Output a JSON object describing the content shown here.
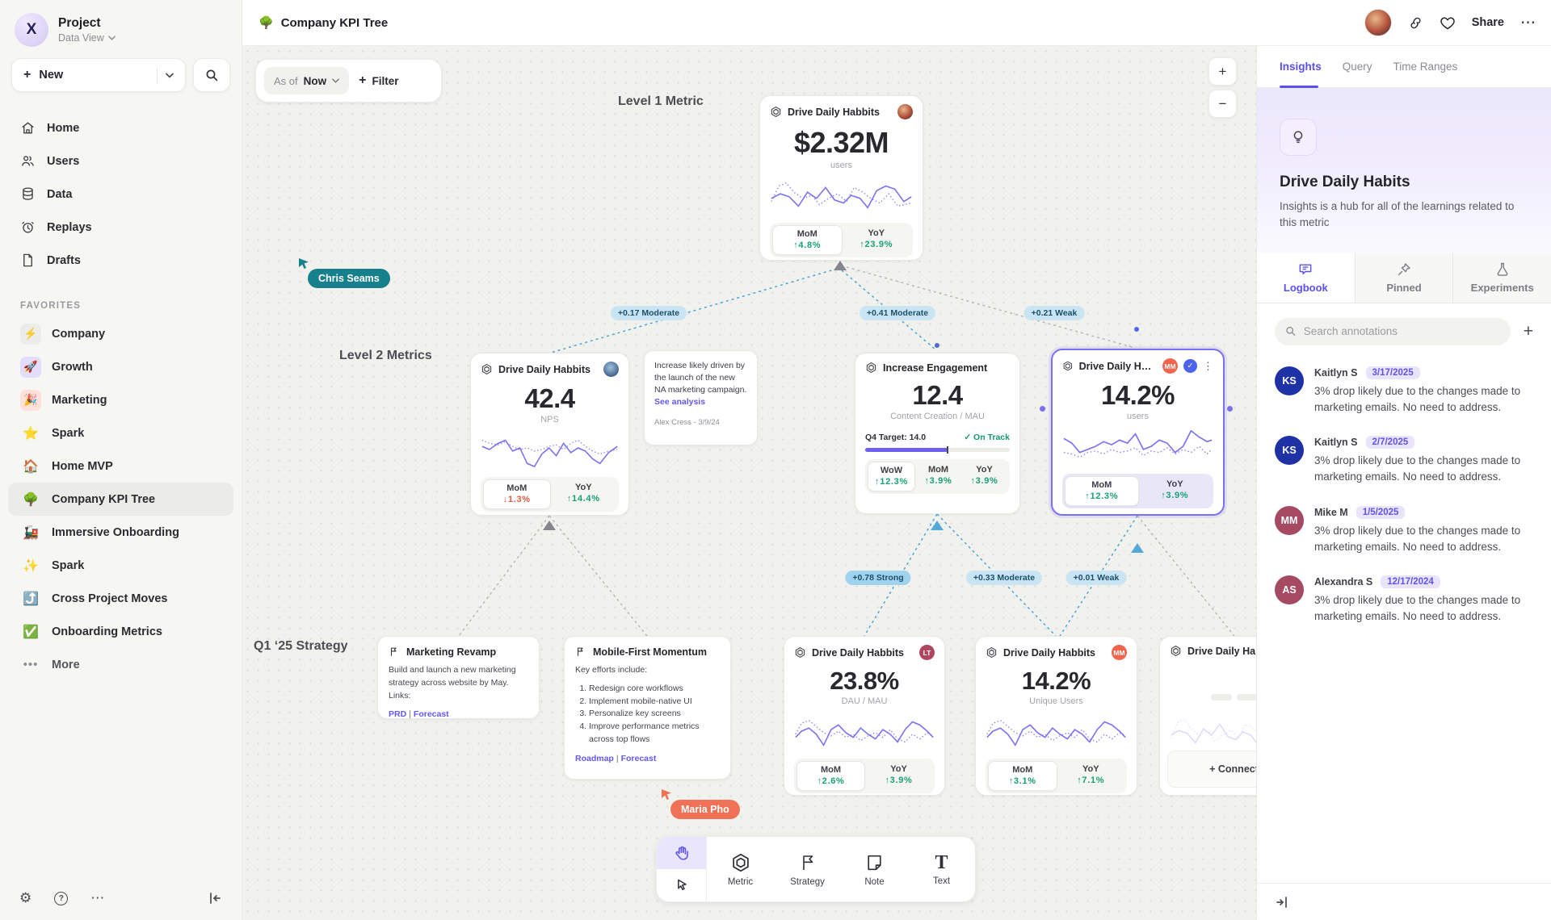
{
  "sidebar": {
    "project_name": "Project",
    "project_view": "Data View",
    "new_label": "New",
    "nav": [
      {
        "label": "Home"
      },
      {
        "label": "Users"
      },
      {
        "label": "Data"
      },
      {
        "label": "Replays"
      },
      {
        "label": "Drafts"
      }
    ],
    "favorites_title": "FAVORITES",
    "favorites": [
      {
        "emoji": "⚡",
        "label": "Company"
      },
      {
        "emoji": "🚀",
        "label": "Growth"
      },
      {
        "emoji": "🎉",
        "label": "Marketing"
      },
      {
        "emoji": "⭐",
        "label": "Spark"
      },
      {
        "emoji": "🏠",
        "label": "Home MVP"
      },
      {
        "emoji": "🌳",
        "label": "Company KPI Tree"
      },
      {
        "emoji": "🚂",
        "label": "Immersive Onboarding"
      },
      {
        "emoji": "✨",
        "label": "Spark"
      },
      {
        "emoji": "⤴️",
        "label": "Cross Project Moves"
      },
      {
        "emoji": "✅",
        "label": "Onboarding Metrics"
      }
    ],
    "more_label": "More"
  },
  "header": {
    "emoji": "🌳",
    "title": "Company KPI Tree",
    "share_label": "Share"
  },
  "canvas": {
    "asof_prefix": "As of",
    "asof_value": "Now",
    "filter_label": "Filter",
    "zoom_in": "+",
    "zoom_out": "−",
    "labels": {
      "level1": "Level 1 Metric",
      "level2": "Level 2 Metrics",
      "strategy": "Q1 ‘25 Strategy"
    },
    "cursors": {
      "chris": "Chris Seams",
      "maria": "Maria Pho"
    },
    "edges": {
      "e1": "+0.17 Moderate",
      "e2": "+0.41 Moderate",
      "e3": "+0.21 Weak",
      "e4": "+0.78 Strong",
      "e5": "+0.33 Moderate",
      "e6": "+0.01 Weak"
    },
    "l1": {
      "title": "Drive Daily Habbits",
      "value": "$2.32M",
      "unit": "users",
      "stats": [
        {
          "label": "MoM",
          "value": "↑4.8%",
          "trend": "up"
        },
        {
          "label": "YoY",
          "value": "↑23.9%",
          "trend": "up"
        }
      ],
      "spark_solid": "2,30 14,24 26,28 38,40 50,22 62,30 74,16 86,32 98,36 108,26 120,30 130,42 142,20 154,14 166,18 178,34 188,28",
      "spark_dotted": "2,34 12,14 22,10 32,22 44,30 56,26 66,38 78,30 90,24 102,34 112,16 124,22 134,30 146,36 158,24 170,40 188,36"
    },
    "note": {
      "body": "Increase likely driven by the launch of the new NA marketing campaign.",
      "link": "See analysis",
      "author": "Alex Cress - 3/9/24"
    },
    "card_nps": {
      "title": "Drive Daily Habbits",
      "value": "42.4",
      "unit": "NPS",
      "stats": [
        {
          "label": "MoM",
          "value": "↓1.3%",
          "trend": "down"
        },
        {
          "label": "YoY",
          "value": "↑14.4%",
          "trend": "up"
        }
      ],
      "spark_solid": "2,22 12,26 24,18 34,14 44,28 54,24 64,44 74,48 84,32 94,24 104,34 114,18 124,30 134,24 144,28 154,38 164,44 176,30 188,22",
      "spark_dotted": "2,14 12,18 24,20 34,16 44,22 54,26 64,24 74,28 84,26 94,22 104,20 114,26 124,18 134,14 144,22 154,28 164,32 176,28 188,26"
    },
    "card_engagement": {
      "title": "Increase Engagement",
      "value": "12.4",
      "unit": "Content Creation / MAU",
      "target_label": "Q4 Target: 14.0",
      "status_check": "✓",
      "status": "On Track",
      "progress_pct": 57,
      "stats": [
        {
          "label": "WoW",
          "value": "↑12.3%",
          "trend": "up"
        },
        {
          "label": "MoM",
          "value": "↑3.9%",
          "trend": "up"
        },
        {
          "label": "YoY",
          "value": "↑3.9%",
          "trend": "up"
        }
      ]
    },
    "card_selected": {
      "title": "Drive Daily Habb..",
      "badge": "MM",
      "badge_color": "#f2654c",
      "check": "✓",
      "value": "14.2%",
      "unit": "users",
      "stats": [
        {
          "label": "MoM",
          "value": "↑12.3%",
          "trend": "up"
        },
        {
          "label": "YoY",
          "value": "↑3.9%",
          "trend": "up"
        }
      ],
      "spark_solid": "2,16 12,22 22,34 32,30 42,26 52,20 62,24 72,18 82,22 92,10 102,30 112,26 122,18 132,22 142,34 152,26 162,6 172,14 182,20 188,18",
      "spark_dotted": "2,34 12,36 22,40 32,34 42,32 52,36 62,30 72,34 82,32 92,28 102,38 112,32 122,34 132,28 142,36 152,30 162,34 172,26 182,36 188,30"
    },
    "strat_marketing": {
      "title": "Marketing Revamp",
      "body": "Build and launch a new marketing strategy across website by May. Links:",
      "link1": "PRD",
      "link2": "Forecast"
    },
    "strat_mobile": {
      "title": "Mobile-First Momentum",
      "intro": "Key efforts include:",
      "items": [
        "Redesign core workflows",
        "Implement mobile-native UI",
        "Personalize key screens",
        "Improve performance metrics across top flows"
      ],
      "link1": "Roadmap",
      "link2": "Forecast"
    },
    "card_dau": {
      "title": "Drive Daily Habbits",
      "badge": "LT",
      "badge_color": "#b0455f",
      "value": "23.8%",
      "unit": "DAU / MAU",
      "stats": [
        {
          "label": "MoM",
          "value": "↑2.6%",
          "trend": "up"
        },
        {
          "label": "YoY",
          "value": "↑3.9%",
          "trend": "up"
        }
      ],
      "spark_solid": "2,34 10,26 20,22 30,30 40,44 50,24 60,18 70,28 80,34 90,22 100,30 110,36 120,24 130,30 140,40 150,24 160,14 170,18 180,26 188,34",
      "spark_dotted": "2,30 10,16 20,12 30,20 40,28 50,32 60,26 70,34 80,30 90,38 100,32 110,28 120,34 130,24 140,36 150,40 160,30 170,36 180,28 188,32"
    },
    "card_unique": {
      "title": "Drive Daily Habbits",
      "badge": "MM",
      "badge_color": "#f2654c",
      "value": "14.2%",
      "unit": "Unique Users",
      "stats": [
        {
          "label": "MoM",
          "value": "↑3.1%",
          "trend": "up"
        },
        {
          "label": "YoY",
          "value": "↑7.1%",
          "trend": "up"
        }
      ],
      "spark_solid": "2,34 10,26 20,22 30,30 40,44 50,24 60,18 70,28 80,34 90,22 100,30 110,36 120,24 130,30 140,40 150,24 160,14 170,18 180,26 188,34",
      "spark_dotted": "2,30 10,16 20,12 30,20 40,28 50,32 60,26 70,34 80,30 90,38 100,32 110,28 120,34 130,24 140,36 150,40 160,30 170,36 180,28 188,32"
    },
    "card_stub": {
      "title": "Drive Daily Habbits",
      "connect_label": "+ Connect",
      "spark_solid": "2,30 14,24 26,28 38,40 50,22 62,30 74,16 86,32 98,36 108,26 120,30 130,42 142,20 154,14 166,18 178,34 188,28",
      "spark_dotted": "2,34 12,14 22,10 32,22 44,30 56,26 66,38 78,30 90,24 102,34 112,16 124,22 134,30 146,36 158,24 170,40 188,36"
    }
  },
  "tools": {
    "metric": "Metric",
    "strategy": "Strategy",
    "note": "Note",
    "text": "Text"
  },
  "insights": {
    "tabs": [
      "Insights",
      "Query",
      "Time Ranges"
    ],
    "title": "Drive Daily Habits",
    "description": "Insights is a hub for all of the learnings related to this metric",
    "subtabs": [
      "Logbook",
      "Pinned",
      "Experiments"
    ],
    "search_placeholder": "Search annotations",
    "annotations": [
      {
        "initials": "KS",
        "name": "Kaitlyn S",
        "date": "3/17/2025",
        "text": "3% drop likely due to the changes made to marketing emails. No need to address.",
        "color": "#1f32a5"
      },
      {
        "initials": "KS",
        "name": "Kaitlyn S",
        "date": "2/7/2025",
        "text": "3% drop likely due to the changes made to marketing emails. No need to address.",
        "color": "#1f32a5"
      },
      {
        "initials": "MM",
        "name": "Mike M",
        "date": "1/5/2025",
        "text": "3% drop likely due to the changes made to marketing emails. No need to address.",
        "color": "#a54a62"
      },
      {
        "initials": "AS",
        "name": "Alexandra S",
        "date": "12/17/2024",
        "text": "3% drop likely due to the changes made to marketing emails. No need to address.",
        "color": "#a54a62"
      }
    ]
  }
}
